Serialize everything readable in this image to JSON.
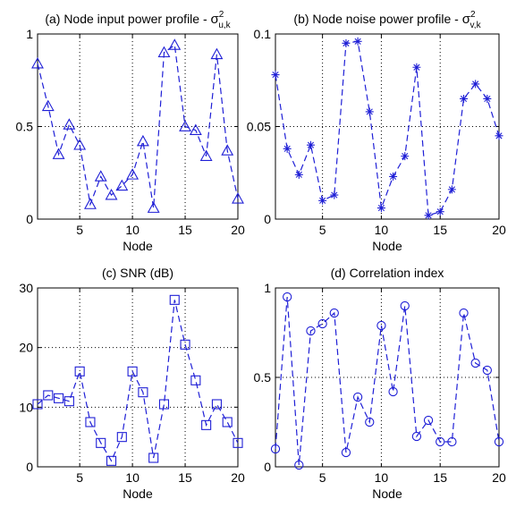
{
  "chart_data": [
    {
      "type": "line",
      "title": "(a) Node input power profile - ",
      "title_math": {
        "symbol": "σ",
        "sup": "2",
        "sub": "u,k"
      },
      "xlabel": "Node",
      "ylabel": "",
      "xlim": [
        1,
        20
      ],
      "ylim": [
        0,
        1
      ],
      "xticks": [
        5,
        10,
        15,
        20
      ],
      "yticks": [
        {
          "v": 0,
          "label": "0"
        },
        {
          "v": 0.5,
          "label": "0.5"
        },
        {
          "v": 1,
          "label": "1"
        }
      ],
      "grid": true,
      "marker": "triangle",
      "color": "#1f1fd6",
      "x": [
        1,
        2,
        3,
        4,
        5,
        6,
        7,
        8,
        9,
        10,
        11,
        12,
        13,
        14,
        15,
        16,
        17,
        18,
        19,
        20
      ],
      "values": [
        0.84,
        0.61,
        0.35,
        0.51,
        0.4,
        0.08,
        0.23,
        0.13,
        0.18,
        0.24,
        0.42,
        0.06,
        0.9,
        0.94,
        0.5,
        0.48,
        0.34,
        0.89,
        0.37,
        0.11
      ]
    },
    {
      "type": "line",
      "title": "(b) Node noise power profile - ",
      "title_math": {
        "symbol": "σ",
        "sup": "2",
        "sub": "v,k"
      },
      "xlabel": "Node",
      "ylabel": "",
      "xlim": [
        1,
        20
      ],
      "ylim": [
        0,
        0.1
      ],
      "xticks": [
        5,
        10,
        15,
        20
      ],
      "yticks": [
        {
          "v": 0,
          "label": "0"
        },
        {
          "v": 0.05,
          "label": "0.05"
        },
        {
          "v": 0.1,
          "label": "0.1"
        }
      ],
      "grid": true,
      "marker": "star",
      "color": "#1f1fd6",
      "x": [
        1,
        2,
        3,
        4,
        5,
        6,
        7,
        8,
        9,
        10,
        11,
        12,
        13,
        14,
        15,
        16,
        17,
        18,
        19,
        20
      ],
      "values": [
        0.078,
        0.038,
        0.024,
        0.04,
        0.01,
        0.013,
        0.095,
        0.096,
        0.058,
        0.006,
        0.023,
        0.034,
        0.082,
        0.002,
        0.004,
        0.016,
        0.065,
        0.073,
        0.065,
        0.045
      ]
    },
    {
      "type": "line",
      "title": "(c) SNR (dB)",
      "xlabel": "Node",
      "ylabel": "",
      "xlim": [
        1,
        20
      ],
      "ylim": [
        0,
        30
      ],
      "xticks": [
        5,
        10,
        15,
        20
      ],
      "yticks": [
        {
          "v": 0,
          "label": "0"
        },
        {
          "v": 10,
          "label": "10"
        },
        {
          "v": 20,
          "label": "20"
        },
        {
          "v": 30,
          "label": "30"
        }
      ],
      "grid": true,
      "marker": "square",
      "color": "#1f1fd6",
      "x": [
        1,
        2,
        3,
        4,
        5,
        6,
        7,
        8,
        9,
        10,
        11,
        12,
        13,
        14,
        15,
        16,
        17,
        18,
        19,
        20
      ],
      "values": [
        10.5,
        12.0,
        11.5,
        11.0,
        16.0,
        7.5,
        4.0,
        1.0,
        5.0,
        16.0,
        12.5,
        1.5,
        10.5,
        28.0,
        20.5,
        14.5,
        7.0,
        10.5,
        7.5,
        4.0
      ]
    },
    {
      "type": "line",
      "title": "(d) Correlation index",
      "xlabel": "Node",
      "ylabel": "",
      "xlim": [
        1,
        20
      ],
      "ylim": [
        0,
        1
      ],
      "xticks": [
        5,
        10,
        15,
        20
      ],
      "yticks": [
        {
          "v": 0,
          "label": "0"
        },
        {
          "v": 0.5,
          "label": "0.5"
        },
        {
          "v": 1,
          "label": "1"
        }
      ],
      "grid": true,
      "marker": "circle",
      "color": "#1f1fd6",
      "x": [
        1,
        2,
        3,
        4,
        5,
        6,
        7,
        8,
        9,
        10,
        11,
        12,
        13,
        14,
        15,
        16,
        17,
        18,
        19,
        20
      ],
      "values": [
        0.1,
        0.95,
        0.01,
        0.76,
        0.8,
        0.86,
        0.08,
        0.39,
        0.25,
        0.79,
        0.42,
        0.9,
        0.17,
        0.26,
        0.14,
        0.14,
        0.86,
        0.58,
        0.54,
        0.14
      ]
    }
  ]
}
